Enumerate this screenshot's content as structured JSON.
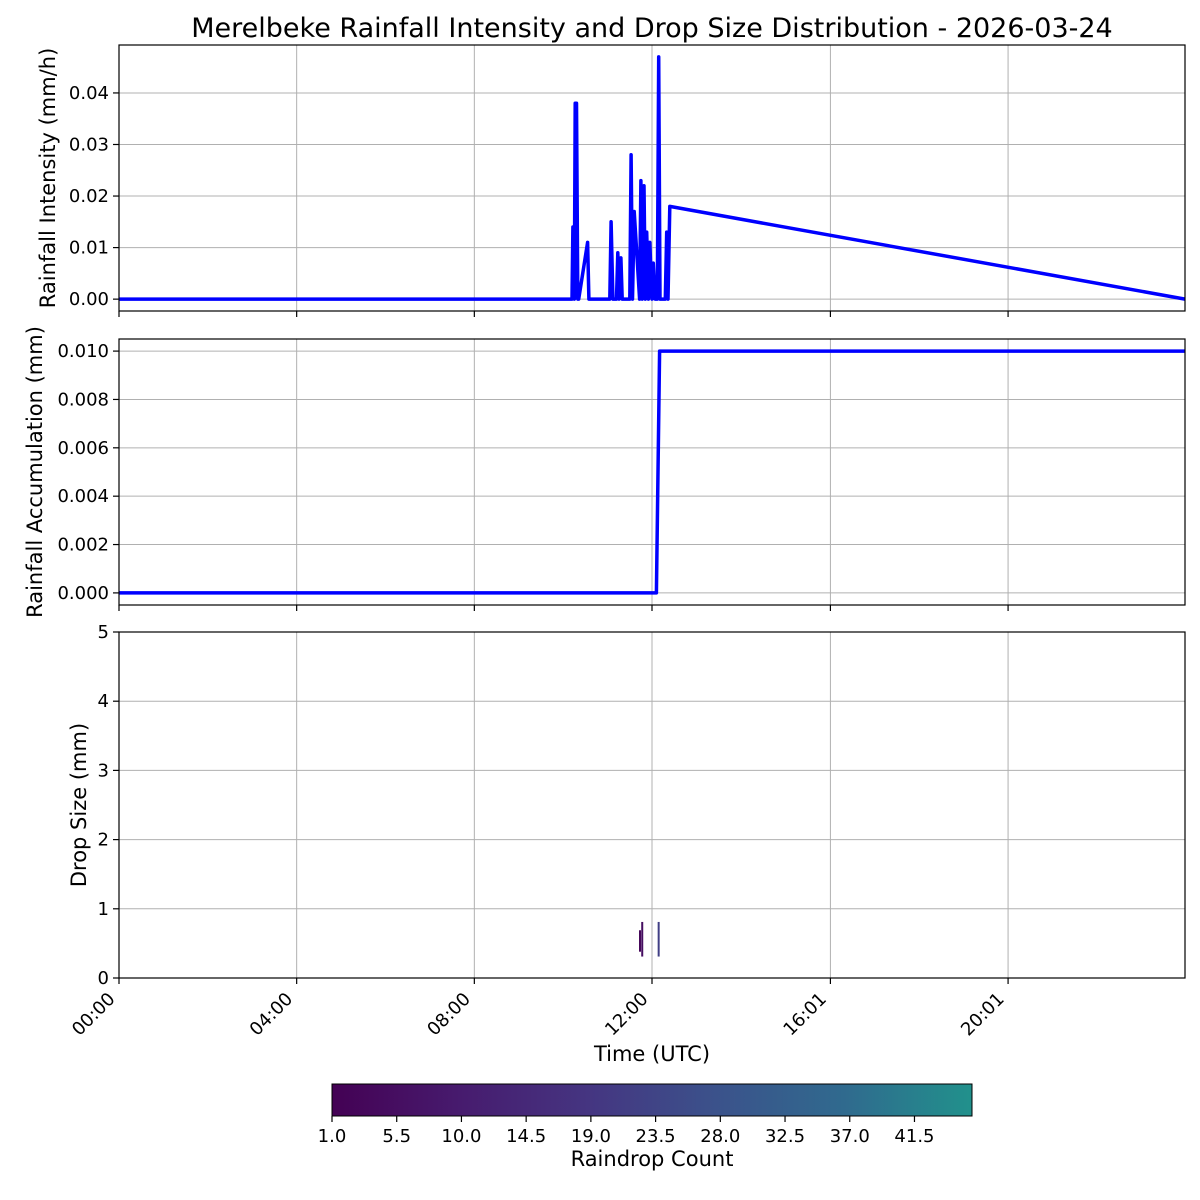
{
  "chart_data": [
    {
      "type": "line",
      "title": "Merelbeke Rainfall Intensity and Drop Size Distribution - 2026-03-24",
      "ylabel": "Rainfall Intensity (mm/h)",
      "xlim_hours": [
        0,
        24
      ],
      "ylim": [
        -0.0023,
        0.0493
      ],
      "yticks": [
        "0.00",
        "0.01",
        "0.02",
        "0.03",
        "0.04"
      ],
      "grid": true,
      "color": "#0000ff",
      "series": [
        {
          "x": [
            0,
            10.2,
            10.22,
            10.25,
            10.27,
            10.3,
            10.33,
            10.35,
            10.55,
            10.58,
            10.62,
            11.05,
            11.08,
            11.12,
            11.2,
            11.23,
            11.26,
            11.3,
            11.33,
            11.37,
            11.5,
            11.53,
            11.56,
            11.6,
            11.72,
            11.75,
            11.78,
            11.82,
            11.85,
            11.88,
            11.92,
            11.95,
            12.0,
            12.03,
            12.07,
            12.12,
            12.15,
            12.18,
            12.3,
            12.33,
            12.36,
            12.4,
            24
          ],
          "y": [
            0,
            0,
            0.014,
            0,
            0.038,
            0.038,
            0,
            0,
            0.011,
            0,
            0,
            0,
            0.015,
            0,
            0,
            0.009,
            0,
            0.008,
            0,
            0,
            0,
            0.028,
            0,
            0.017,
            0,
            0.023,
            0,
            0.022,
            0,
            0.013,
            0,
            0.011,
            0,
            0.007,
            0,
            0,
            0.047,
            0,
            0,
            0.013,
            0,
            0.018,
            0
          ]
        }
      ]
    },
    {
      "type": "line",
      "ylabel": "Rainfall Accumulation (mm)",
      "xlim_hours": [
        0,
        24
      ],
      "ylim": [
        -0.0005,
        0.0105
      ],
      "yticks": [
        "0.000",
        "0.002",
        "0.004",
        "0.006",
        "0.008",
        "0.010"
      ],
      "grid": true,
      "color": "#0000ff",
      "series": [
        {
          "x": [
            0,
            12.1,
            12.17,
            24
          ],
          "y": [
            0,
            0,
            0.01,
            0.01
          ]
        }
      ]
    },
    {
      "type": "heatmap",
      "ylabel": "Drop Size (mm)",
      "xlabel": "Time (UTC)",
      "xlim_hours": [
        0,
        24
      ],
      "ylim": [
        0,
        5
      ],
      "yticks": [
        "0",
        "1",
        "2",
        "3",
        "4",
        "5"
      ],
      "xticks": [
        "00:00",
        "04:00",
        "08:00",
        "12:00",
        "16:01",
        "20:01"
      ],
      "grid": true,
      "cells": [
        {
          "x": 11.73,
          "y0": 0.38,
          "y1": 0.69,
          "count": 3
        },
        {
          "x": 11.78,
          "y0": 0.31,
          "y1": 0.81,
          "count": 5
        },
        {
          "x": 12.15,
          "y0": 0.31,
          "y1": 0.81,
          "count": 22
        }
      ],
      "colorbar": {
        "label": "Raindrop Count",
        "vmin": 1.0,
        "vmax": 45.5,
        "ticks": [
          "1.0",
          "5.5",
          "10.0",
          "14.5",
          "19.0",
          "23.5",
          "28.0",
          "32.5",
          "37.0",
          "41.5"
        ],
        "colormap": "viridis"
      }
    }
  ]
}
